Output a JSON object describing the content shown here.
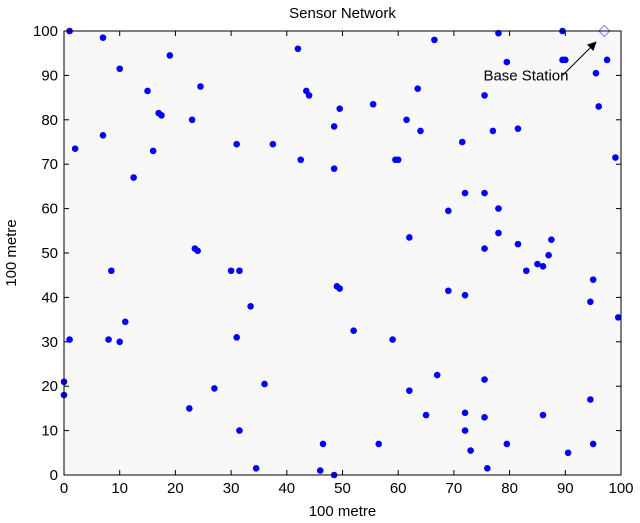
{
  "chart_data": {
    "type": "scatter",
    "title": "Sensor Network",
    "xlabel": "100 metre",
    "ylabel": "100 metre",
    "xlim": [
      0,
      100
    ],
    "ylim": [
      0,
      100
    ],
    "xticks": [
      "0",
      "10",
      "20",
      "30",
      "40",
      "50",
      "60",
      "70",
      "80",
      "90",
      "100"
    ],
    "yticks": [
      "0",
      "10",
      "20",
      "30",
      "40",
      "50",
      "60",
      "70",
      "80",
      "90",
      "100"
    ],
    "grid": false,
    "colors": {
      "sensor": "#0000ff",
      "base_station": "#8080ff",
      "plot_bg": "#f8f8f8",
      "axis": "#000000"
    },
    "series": [
      {
        "name": "",
        "marker": "dot",
        "points": [
          [
            1,
            100
          ],
          [
            7,
            98.5
          ],
          [
            10,
            91.5
          ],
          [
            2,
            73.5
          ],
          [
            7,
            76.5
          ],
          [
            12.5,
            67
          ],
          [
            15,
            86.5
          ],
          [
            16,
            73
          ],
          [
            17,
            81.5
          ],
          [
            17.5,
            81
          ],
          [
            19,
            94.5
          ],
          [
            23,
            80
          ],
          [
            24.5,
            87.5
          ],
          [
            31,
            74.5
          ],
          [
            37.5,
            74.5
          ],
          [
            42,
            96
          ],
          [
            42.5,
            71
          ],
          [
            43.5,
            86.5
          ],
          [
            44,
            85.5
          ],
          [
            48.5,
            78.5
          ],
          [
            48.5,
            69
          ],
          [
            49.5,
            82.5
          ],
          [
            55.5,
            83.5
          ],
          [
            59.5,
            71
          ],
          [
            60,
            71
          ],
          [
            61.5,
            80
          ],
          [
            63.5,
            87
          ],
          [
            64,
            77.5
          ],
          [
            66.5,
            98
          ],
          [
            71.5,
            75
          ],
          [
            78,
            99.5
          ],
          [
            79.5,
            93
          ],
          [
            75.5,
            85.5
          ],
          [
            77,
            77.5
          ],
          [
            81.5,
            78
          ],
          [
            89.5,
            100
          ],
          [
            89.5,
            93.5
          ],
          [
            90,
            93.5
          ],
          [
            95.5,
            90.5
          ],
          [
            97.5,
            93.5
          ],
          [
            96,
            83
          ],
          [
            99,
            71.5
          ],
          [
            72,
            63.5
          ],
          [
            75.5,
            63.5
          ],
          [
            69,
            59.5
          ],
          [
            78,
            60
          ],
          [
            78,
            54.5
          ],
          [
            75.5,
            51
          ],
          [
            81.5,
            52
          ],
          [
            87.5,
            53
          ],
          [
            87,
            49.5
          ],
          [
            85,
            47.5
          ],
          [
            86,
            47
          ],
          [
            83,
            46
          ],
          [
            62,
            53.5
          ],
          [
            95,
            44
          ],
          [
            94.5,
            39
          ],
          [
            99.5,
            35.5
          ],
          [
            69,
            41.5
          ],
          [
            72,
            40.5
          ],
          [
            0,
            21
          ],
          [
            1,
            30.5
          ],
          [
            0,
            18
          ],
          [
            8.5,
            46
          ],
          [
            8,
            30.5
          ],
          [
            10,
            30
          ],
          [
            11,
            34.5
          ],
          [
            23.5,
            51
          ],
          [
            24,
            50.5
          ],
          [
            30,
            46
          ],
          [
            31.5,
            46
          ],
          [
            33.5,
            38
          ],
          [
            31,
            31
          ],
          [
            27,
            19.5
          ],
          [
            22.5,
            15
          ],
          [
            36,
            20.5
          ],
          [
            31.5,
            10
          ],
          [
            34.5,
            1.5
          ],
          [
            46,
            1
          ],
          [
            46.5,
            7
          ],
          [
            48.5,
            0
          ],
          [
            49,
            42.5
          ],
          [
            49.5,
            42
          ],
          [
            52,
            32.5
          ],
          [
            59,
            30.5
          ],
          [
            62,
            19
          ],
          [
            65,
            13.5
          ],
          [
            56.5,
            7
          ],
          [
            67,
            22.5
          ],
          [
            72,
            14
          ],
          [
            72,
            10
          ],
          [
            73,
            5.5
          ],
          [
            75.5,
            21.5
          ],
          [
            75.5,
            13
          ],
          [
            76,
            1.5
          ],
          [
            79.5,
            7
          ],
          [
            86,
            13.5
          ],
          [
            90.5,
            5
          ],
          [
            94.5,
            17
          ],
          [
            95,
            7
          ]
        ]
      },
      {
        "name": "",
        "marker": "diamond",
        "points": [
          [
            97,
            100
          ]
        ]
      }
    ],
    "annotations": [
      {
        "text": "Base Station",
        "arrow_from": [
          89.5,
          90
        ],
        "arrow_to": [
          95.5,
          97.5
        ]
      }
    ]
  }
}
